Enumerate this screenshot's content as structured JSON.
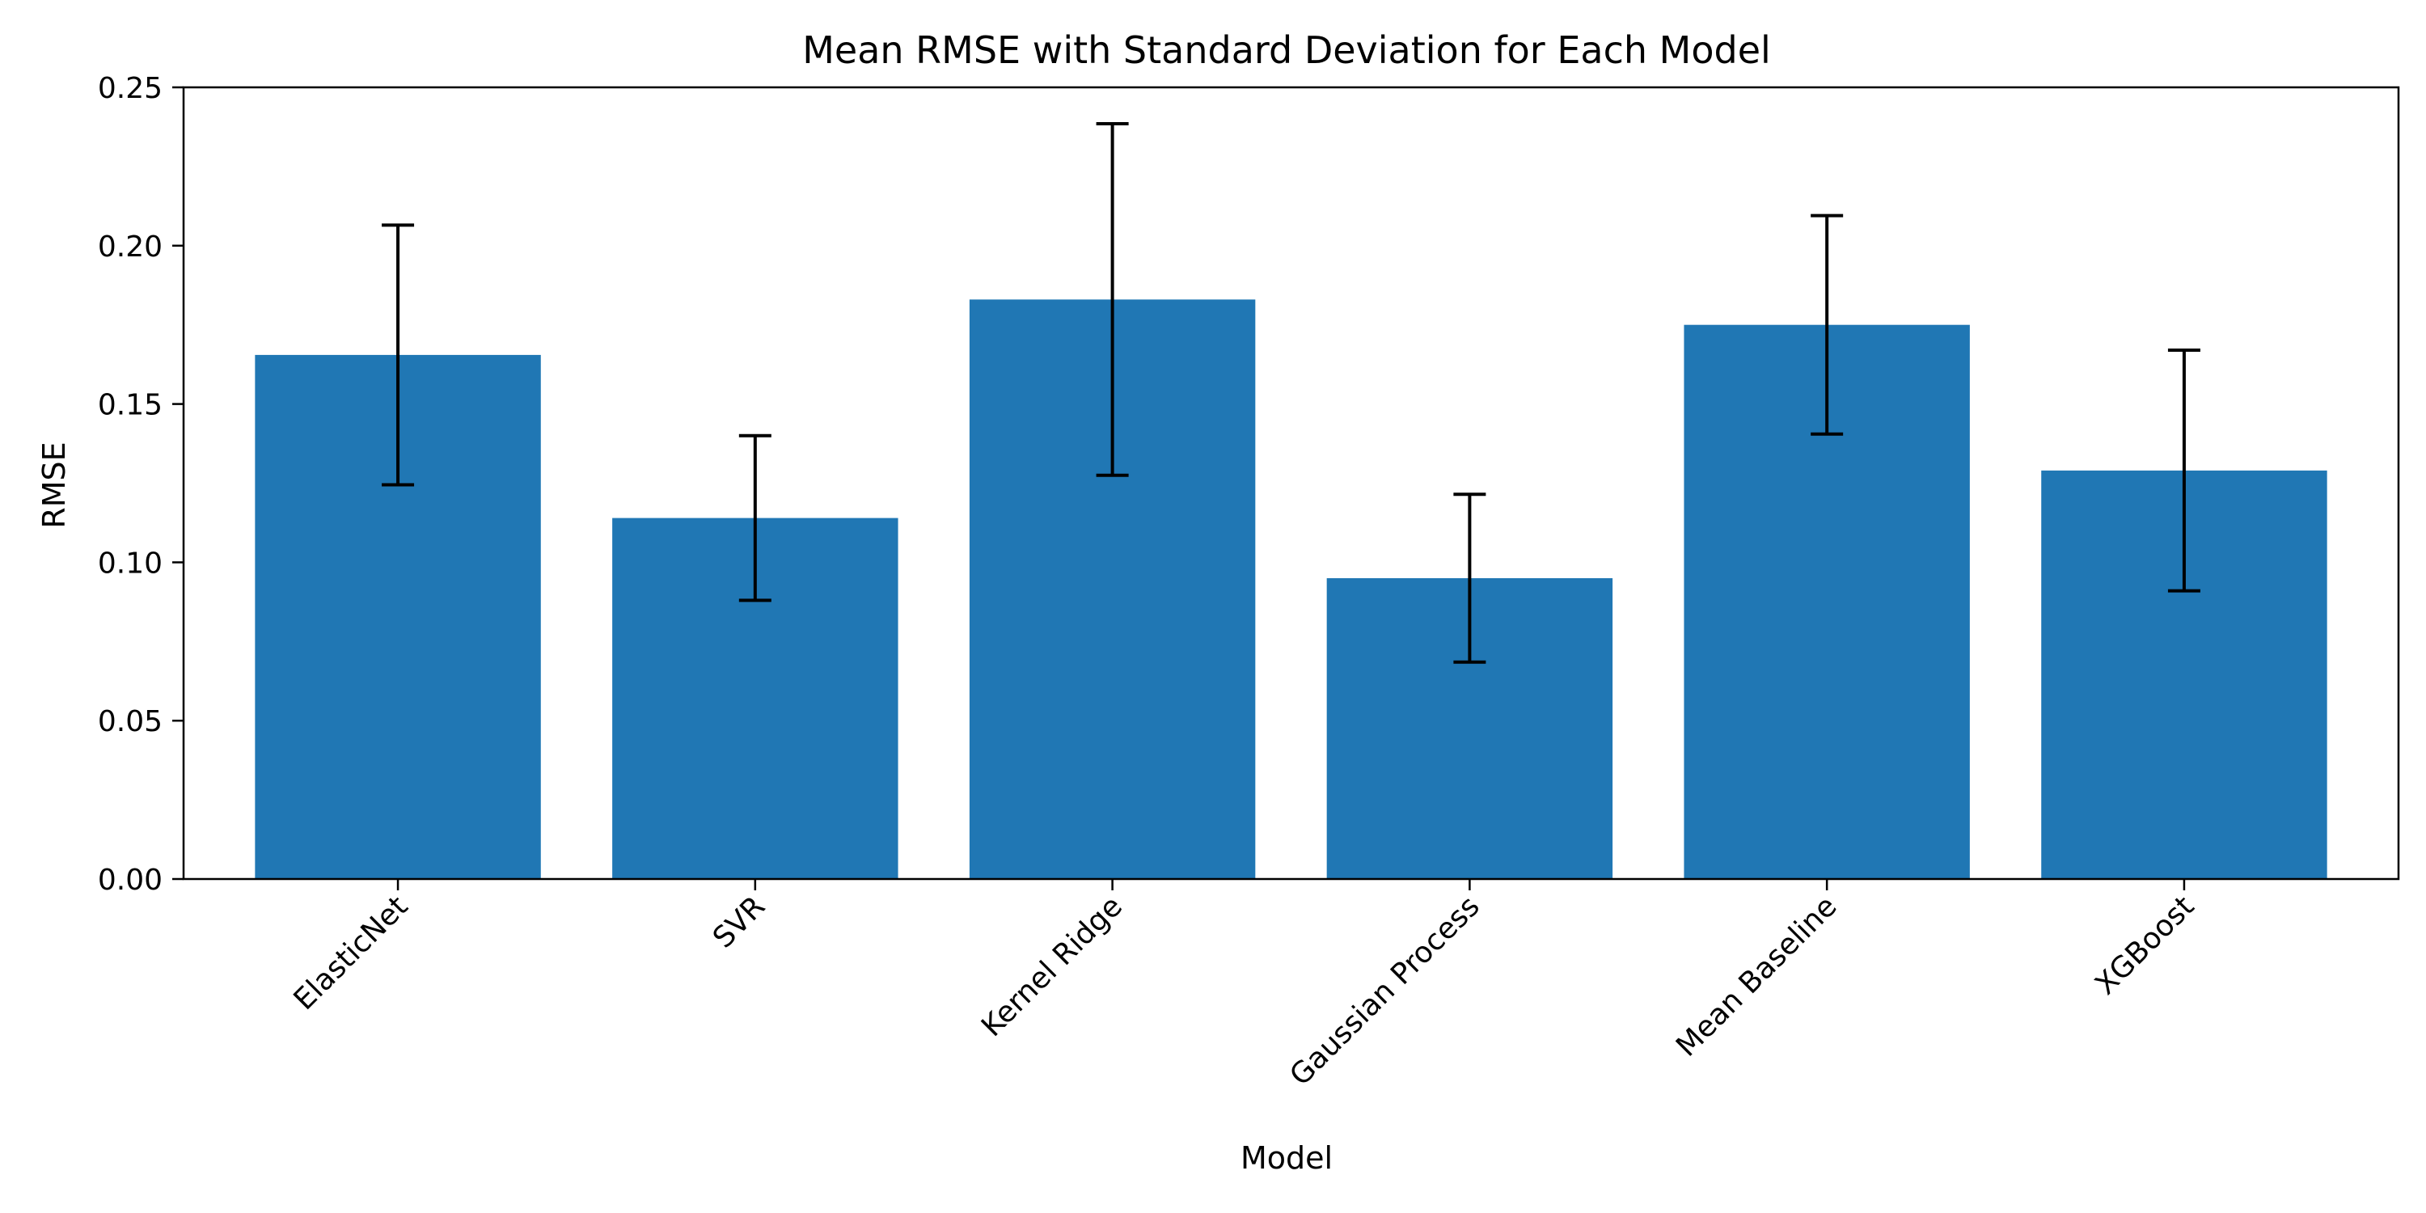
{
  "chart_data": {
    "type": "bar",
    "title": "Mean RMSE with Standard Deviation for Each Model",
    "xlabel": "Model",
    "ylabel": "RMSE",
    "ylim": [
      0,
      0.25
    ],
    "yticks": [
      "0.00",
      "0.05",
      "0.10",
      "0.15",
      "0.20",
      "0.25"
    ],
    "categories": [
      "ElasticNet",
      "SVR",
      "Kernel Ridge",
      "Gaussian Process",
      "Mean Baseline",
      "XGBoost"
    ],
    "values": [
      0.1655,
      0.114,
      0.183,
      0.095,
      0.175,
      0.129
    ],
    "error": [
      0.041,
      0.026,
      0.0555,
      0.0265,
      0.0345,
      0.038
    ],
    "bar_color": "#2077b4",
    "error_color": "#000000",
    "grid": false,
    "legend": false
  }
}
